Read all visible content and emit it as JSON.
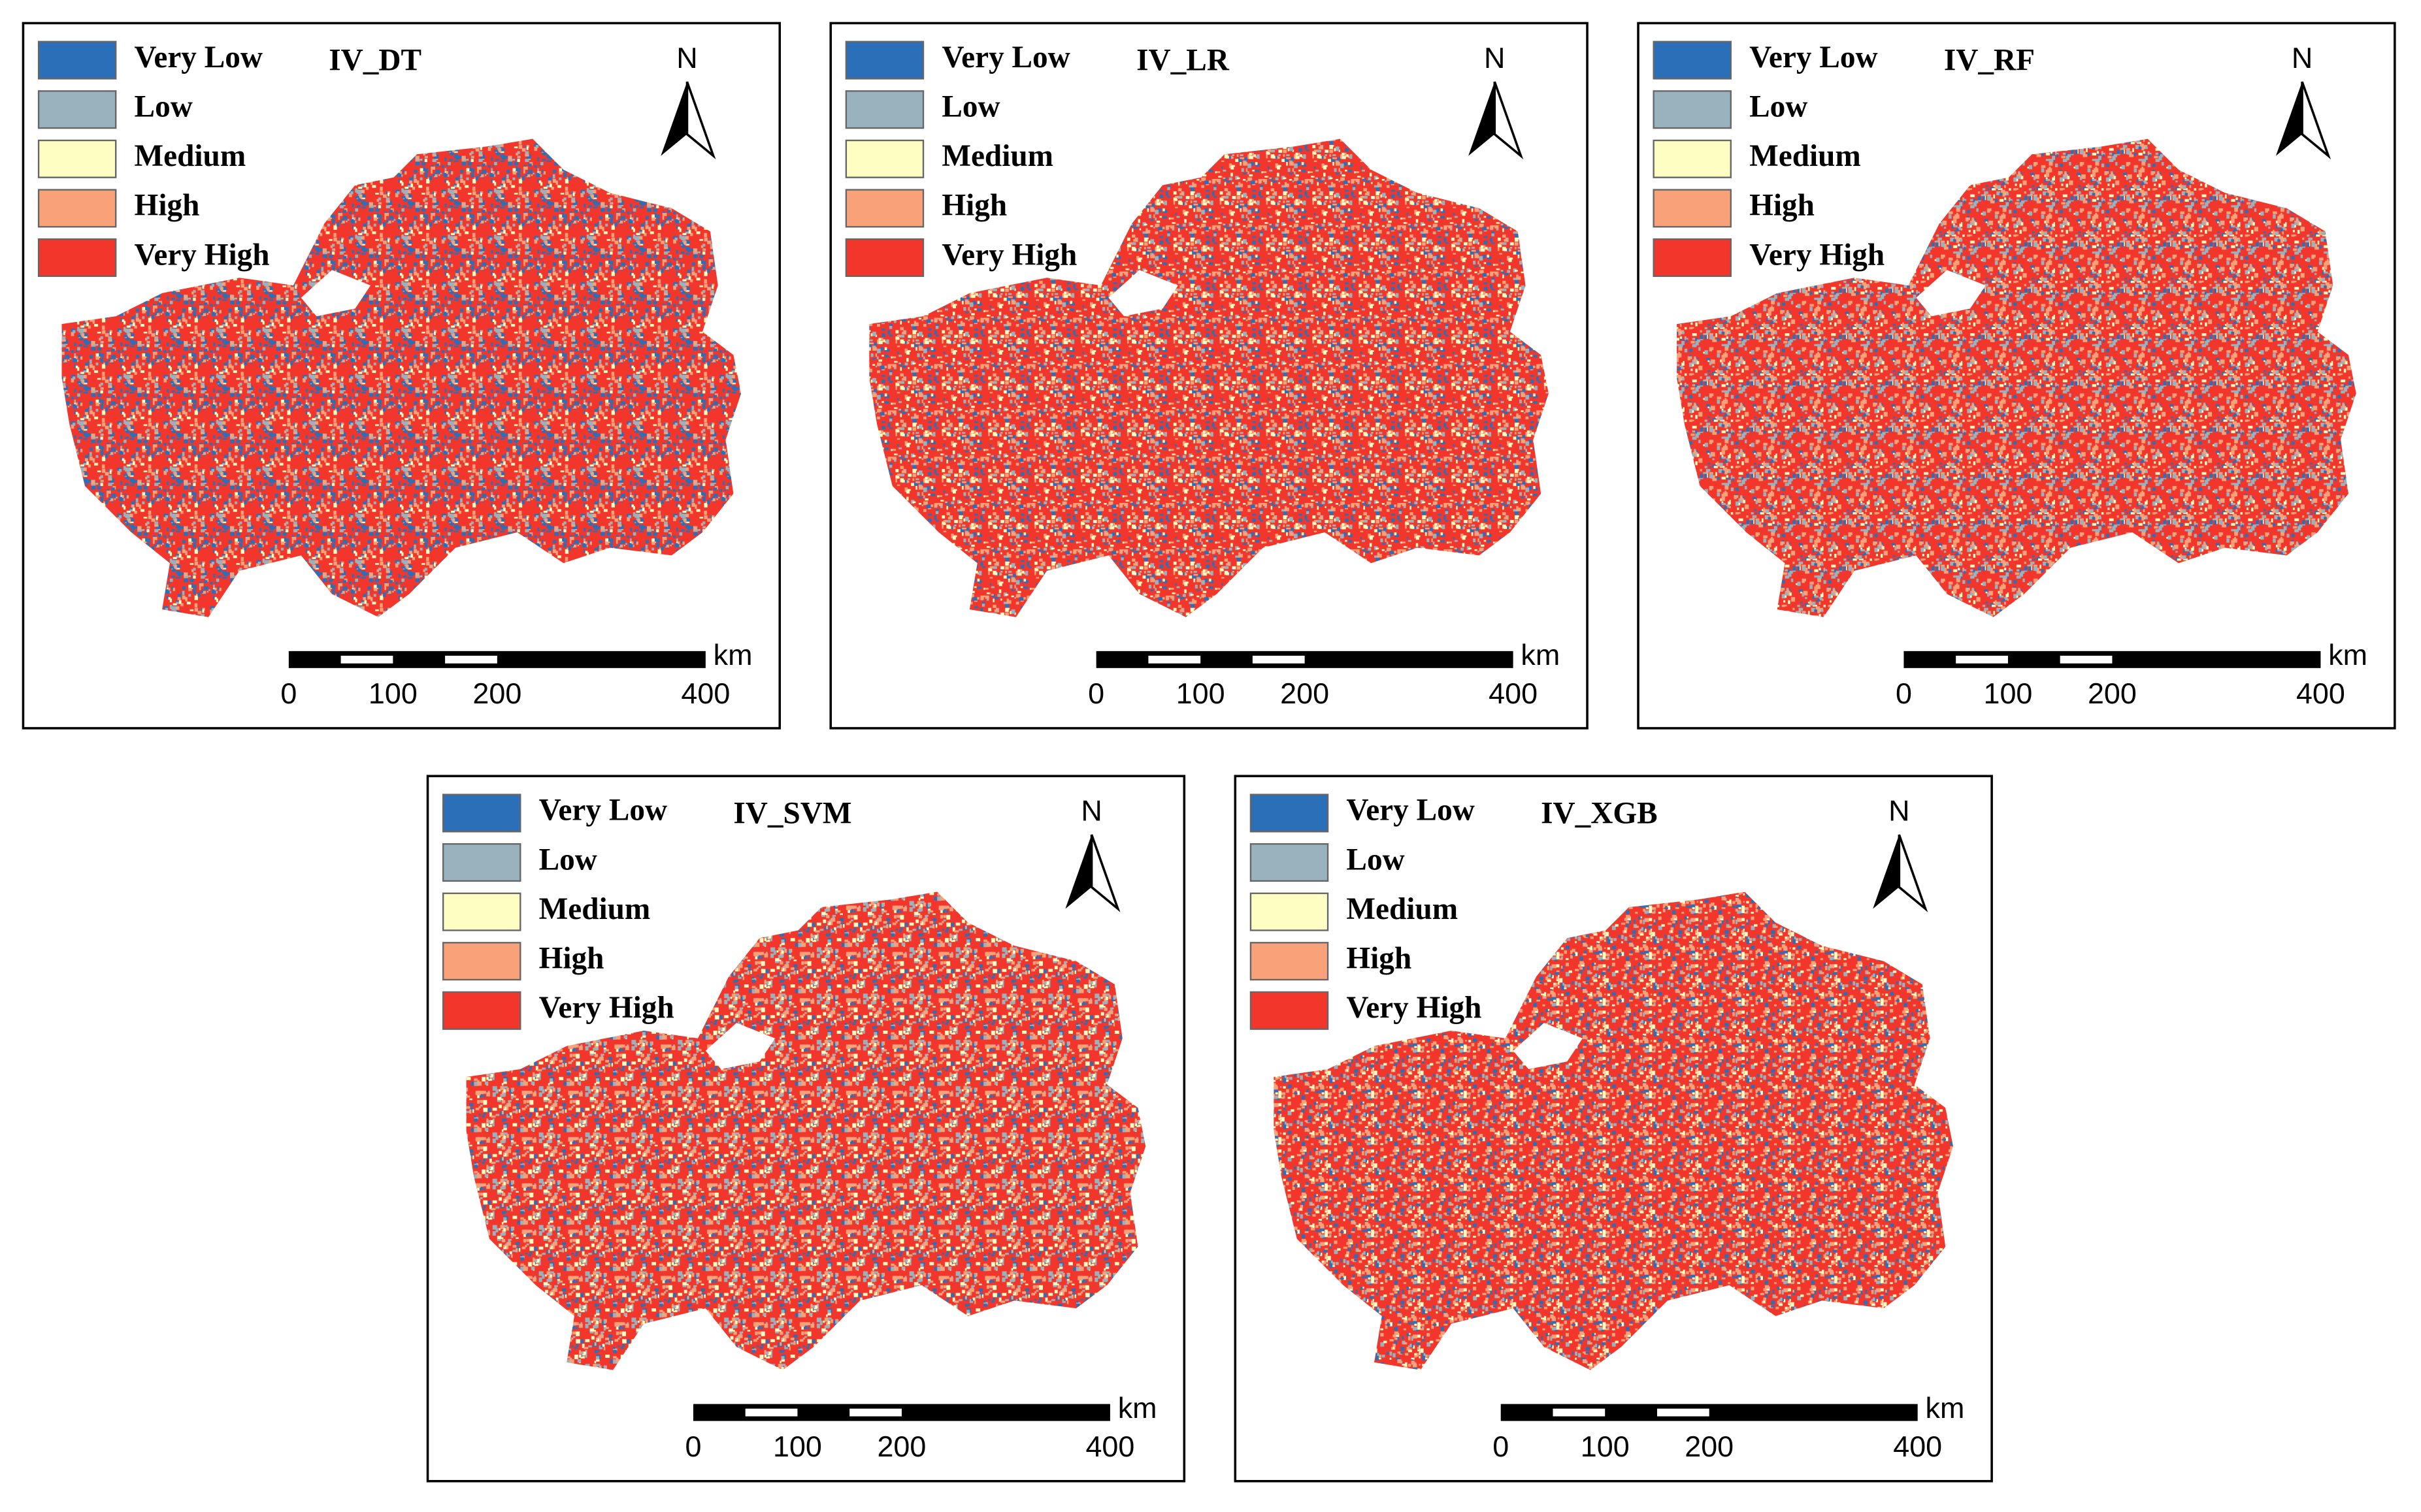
{
  "panels": [
    {
      "title": "IV_DT"
    },
    {
      "title": "IV_LR"
    },
    {
      "title": "IV_RF"
    },
    {
      "title": "IV_SVM"
    },
    {
      "title": "IV_XGB"
    }
  ],
  "legend": [
    {
      "label": "Very Low",
      "color": "#2b6fb8"
    },
    {
      "label": "Low",
      "color": "#98b3be"
    },
    {
      "label": "Medium",
      "color": "#fefdc2"
    },
    {
      "label": "High",
      "color": "#f9a27a"
    },
    {
      "label": "Very High",
      "color": "#f2362b"
    }
  ],
  "north": "N",
  "scale_bar": {
    "ticks": [
      0,
      100,
      200,
      400
    ],
    "unit": "km"
  }
}
